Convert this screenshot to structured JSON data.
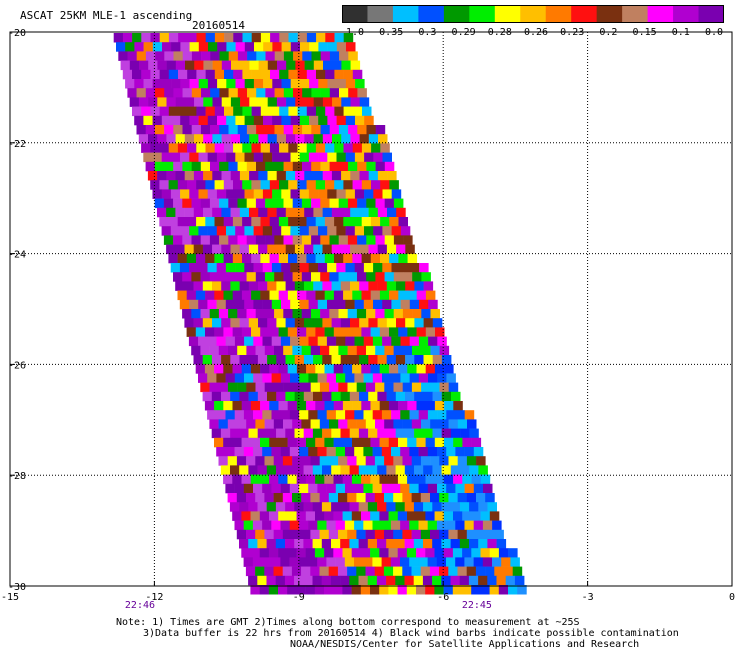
{
  "header": {
    "title": "ASCAT 25KM MLE-1 ascending",
    "date": "20160514"
  },
  "colorbar": {
    "labels": [
      "-1.0",
      "-0.35",
      "-0.3",
      "-0.29",
      "-0.28",
      "-0.26",
      "-0.23",
      "-0.2",
      "-0.15",
      "-0.1",
      "0.0"
    ],
    "colors": [
      "#303030",
      "#777777",
      "#00bfff",
      "#0050ff",
      "#009900",
      "#00ee00",
      "#ffff00",
      "#ffbf00",
      "#ff7a00",
      "#ff1010",
      "#7a3010",
      "#c08060",
      "#ff00ff",
      "#b000d0",
      "#7a00b0"
    ]
  },
  "chart_data": {
    "type": "heatmap",
    "title": "ASCAT 25KM MLE-1 ascending",
    "xlim": [
      -15,
      0
    ],
    "ylim": [
      -30,
      -20
    ],
    "x_ticks": [
      "-15",
      "-12",
      "-9",
      "-6",
      "-3",
      "0"
    ],
    "y_ticks": [
      "-20",
      "-22",
      "-24",
      "-26",
      "-28",
      "-30"
    ],
    "grid": true,
    "swath": {
      "west_edge": [
        [
          -12.85,
          -20
        ],
        [
          -10.0,
          -30
        ]
      ],
      "east_edge": [
        [
          -8.0,
          -20
        ],
        [
          -4.4,
          -30
        ]
      ]
    },
    "time_labels": [
      {
        "text": "22:46",
        "x": -12.3
      },
      {
        "text": "22:45",
        "x": -5.3
      }
    ]
  },
  "footer": {
    "note1": "Note: 1) Times are GMT 2)Times along bottom correspond to measurement at ~25S",
    "note2": "3)Data buffer is 22 hrs from 20160514 4) Black wind barbs indicate possible contamination",
    "note3": "NOAA/NESDIS/Center for Satellite Applications and Research"
  }
}
